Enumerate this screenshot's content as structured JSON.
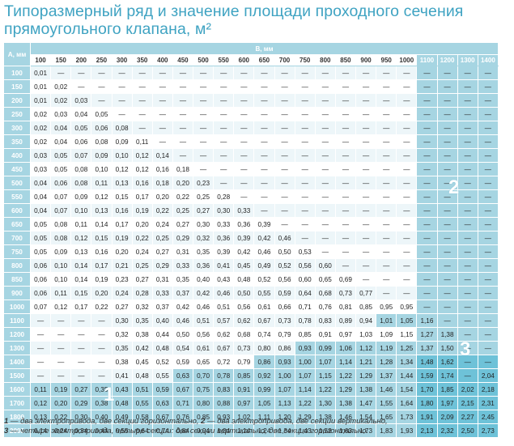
{
  "title": "Типоразмерный ряд и значение площади проходного сечения прямоугольного клапана, м²",
  "table": {
    "corner_label": "A, мм",
    "b_label": "B, мм",
    "columns": [
      "100",
      "150",
      "200",
      "250",
      "300",
      "350",
      "400",
      "450",
      "500",
      "550",
      "600",
      "650",
      "700",
      "750",
      "800",
      "850",
      "900",
      "950",
      "1000",
      "1100",
      "1200",
      "1300",
      "1400"
    ],
    "rows": [
      {
        "a": "100",
        "v": [
          "0,01",
          "—",
          "—",
          "—",
          "—",
          "—",
          "—",
          "—",
          "—",
          "—",
          "—",
          "—",
          "—",
          "—",
          "—",
          "—",
          "—",
          "—",
          "—",
          "—",
          "—",
          "—",
          "—"
        ]
      },
      {
        "a": "150",
        "v": [
          "0,01",
          "0,02",
          "—",
          "—",
          "—",
          "—",
          "—",
          "—",
          "—",
          "—",
          "—",
          "—",
          "—",
          "—",
          "—",
          "—",
          "—",
          "—",
          "—",
          "—",
          "—",
          "—",
          "—"
        ]
      },
      {
        "a": "200",
        "v": [
          "0,01",
          "0,02",
          "0,03",
          "—",
          "—",
          "—",
          "—",
          "—",
          "—",
          "—",
          "—",
          "—",
          "—",
          "—",
          "—",
          "—",
          "—",
          "—",
          "—",
          "—",
          "—",
          "—",
          "—"
        ]
      },
      {
        "a": "250",
        "v": [
          "0,02",
          "0,03",
          "0,04",
          "0,05",
          "—",
          "—",
          "—",
          "—",
          "—",
          "—",
          "—",
          "—",
          "—",
          "—",
          "—",
          "—",
          "—",
          "—",
          "—",
          "—",
          "—",
          "—",
          "—"
        ]
      },
      {
        "a": "300",
        "v": [
          "0,02",
          "0,04",
          "0,05",
          "0,06",
          "0,08",
          "—",
          "—",
          "—",
          "—",
          "—",
          "—",
          "—",
          "—",
          "—",
          "—",
          "—",
          "—",
          "—",
          "—",
          "—",
          "—",
          "—",
          "—"
        ]
      },
      {
        "a": "350",
        "v": [
          "0,02",
          "0,04",
          "0,06",
          "0,08",
          "0,09",
          "0,11",
          "—",
          "—",
          "—",
          "—",
          "—",
          "—",
          "—",
          "—",
          "—",
          "—",
          "—",
          "—",
          "—",
          "—",
          "—",
          "—",
          "—"
        ]
      },
      {
        "a": "400",
        "v": [
          "0,03",
          "0,05",
          "0,07",
          "0,09",
          "0,10",
          "0,12",
          "0,14",
          "—",
          "—",
          "—",
          "—",
          "—",
          "—",
          "—",
          "—",
          "—",
          "—",
          "—",
          "—",
          "—",
          "—",
          "—",
          "—"
        ]
      },
      {
        "a": "450",
        "v": [
          "0,03",
          "0,05",
          "0,08",
          "0,10",
          "0,12",
          "0,12",
          "0,16",
          "0,18",
          "—",
          "—",
          "—",
          "—",
          "—",
          "—",
          "—",
          "—",
          "—",
          "—",
          "—",
          "—",
          "—",
          "—",
          "—"
        ]
      },
      {
        "a": "500",
        "v": [
          "0,04",
          "0,06",
          "0,08",
          "0,11",
          "0,13",
          "0,16",
          "0,18",
          "0,20",
          "0,23",
          "—",
          "—",
          "—",
          "—",
          "—",
          "—",
          "—",
          "—",
          "—",
          "—",
          "—",
          "—",
          "—",
          "—"
        ]
      },
      {
        "a": "550",
        "v": [
          "0,04",
          "0,07",
          "0,09",
          "0,12",
          "0,15",
          "0,17",
          "0,20",
          "0,22",
          "0,25",
          "0,28",
          "—",
          "—",
          "—",
          "—",
          "—",
          "—",
          "—",
          "—",
          "—",
          "—",
          "—",
          "—",
          "—"
        ]
      },
      {
        "a": "600",
        "v": [
          "0,04",
          "0,07",
          "0,10",
          "0,13",
          "0,16",
          "0,19",
          "0,22",
          "0,25",
          "0,27",
          "0,30",
          "0,33",
          "—",
          "—",
          "—",
          "—",
          "—",
          "—",
          "—",
          "—",
          "—",
          "—",
          "—",
          "—"
        ]
      },
      {
        "a": "650",
        "v": [
          "0,05",
          "0,08",
          "0,11",
          "0,14",
          "0,17",
          "0,20",
          "0,24",
          "0,27",
          "0,30",
          "0,33",
          "0,36",
          "0,39",
          "—",
          "—",
          "—",
          "—",
          "—",
          "—",
          "—",
          "—",
          "—",
          "—",
          "—"
        ]
      },
      {
        "a": "700",
        "v": [
          "0,05",
          "0,08",
          "0,12",
          "0,15",
          "0,19",
          "0,22",
          "0,25",
          "0,29",
          "0,32",
          "0,36",
          "0,39",
          "0,42",
          "0,46",
          "—",
          "—",
          "—",
          "—",
          "—",
          "—",
          "—",
          "—",
          "—",
          "—"
        ]
      },
      {
        "a": "750",
        "v": [
          "0,05",
          "0,09",
          "0,13",
          "0,16",
          "0,20",
          "0,24",
          "0,27",
          "0,31",
          "0,35",
          "0,39",
          "0,42",
          "0,46",
          "0,50",
          "0,53",
          "—",
          "—",
          "—",
          "—",
          "—",
          "—",
          "—",
          "—",
          "—"
        ]
      },
      {
        "a": "800",
        "v": [
          "0,06",
          "0,10",
          "0,14",
          "0,17",
          "0,21",
          "0,25",
          "0,29",
          "0,33",
          "0,36",
          "0,41",
          "0,45",
          "0,49",
          "0,52",
          "0,56",
          "0,60",
          "—",
          "—",
          "—",
          "—",
          "—",
          "—",
          "—",
          "—"
        ]
      },
      {
        "a": "850",
        "v": [
          "0,06",
          "0,10",
          "0,14",
          "0,19",
          "0,23",
          "0,27",
          "0,31",
          "0,35",
          "0,40",
          "0,43",
          "0,48",
          "0,52",
          "0,56",
          "0,60",
          "0,65",
          "0,69",
          "—",
          "—",
          "—",
          "—",
          "—",
          "—",
          "—"
        ]
      },
      {
        "a": "900",
        "v": [
          "0,06",
          "0,11",
          "0,15",
          "0,20",
          "0,24",
          "0,28",
          "0,33",
          "0,37",
          "0,42",
          "0,46",
          "0,50",
          "0,55",
          "0,59",
          "0,64",
          "0,68",
          "0,73",
          "0,77",
          "—",
          "—",
          "—",
          "—",
          "—",
          "—"
        ]
      },
      {
        "a": "1000",
        "v": [
          "0,07",
          "0,12",
          "0,17",
          "0,22",
          "0,27",
          "0,32",
          "0,37",
          "0,42",
          "0,46",
          "0,51",
          "0,56",
          "0,61",
          "0,66",
          "0,71",
          "0,76",
          "0,81",
          "0,85",
          "0,95",
          "0,95",
          "—",
          "—",
          "—",
          "—"
        ]
      },
      {
        "a": "1100",
        "v": [
          "—",
          "—",
          "—",
          "—",
          "0,30",
          "0,35",
          "0,40",
          "0,46",
          "0,51",
          "0,57",
          "0,62",
          "0,67",
          "0,73",
          "0,78",
          "0,83",
          "0,89",
          "0,94",
          "1,01",
          "1,05",
          "1,16",
          "—",
          "—",
          "—"
        ]
      },
      {
        "a": "1200",
        "v": [
          "—",
          "—",
          "—",
          "—",
          "0,32",
          "0,38",
          "0,44",
          "0,50",
          "0,56",
          "0,62",
          "0,68",
          "0,74",
          "0,79",
          "0,85",
          "0,91",
          "0,97",
          "1,03",
          "1,09",
          "1,15",
          "1,27",
          "1,38",
          "—",
          "—"
        ]
      },
      {
        "a": "1300",
        "v": [
          "—",
          "—",
          "—",
          "—",
          "0,35",
          "0,42",
          "0,48",
          "0,54",
          "0,61",
          "0,67",
          "0,73",
          "0,80",
          "0,86",
          "0,93",
          "0,99",
          "1,06",
          "1,12",
          "1,19",
          "1,25",
          "1,37",
          "1,50",
          "—",
          "—"
        ]
      },
      {
        "a": "1400",
        "v": [
          "—",
          "—",
          "—",
          "—",
          "0,38",
          "0,45",
          "0,52",
          "0,59",
          "0,65",
          "0,72",
          "0,79",
          "0,86",
          "0,93",
          "1,00",
          "1,07",
          "1,14",
          "1,21",
          "1,28",
          "1,34",
          "1,48",
          "1,62",
          "—",
          "—"
        ]
      },
      {
        "a": "1500",
        "v": [
          "—",
          "—",
          "—",
          "—",
          "0,41",
          "0,48",
          "0,55",
          "0,63",
          "0,70",
          "0,78",
          "0,85",
          "0,92",
          "1,00",
          "1,07",
          "1,15",
          "1,22",
          "1,29",
          "1,37",
          "1,44",
          "1,59",
          "1,74",
          "—",
          "2,04"
        ]
      },
      {
        "a": "1600",
        "v": [
          "0,11",
          "0,19",
          "0,27",
          "0,35",
          "0,43",
          "0,51",
          "0,59",
          "0,67",
          "0,75",
          "0,83",
          "0,91",
          "0,99",
          "1,07",
          "1,14",
          "1,22",
          "1,29",
          "1,38",
          "1,46",
          "1,54",
          "1,70",
          "1,85",
          "2,02",
          "2,18"
        ]
      },
      {
        "a": "1700",
        "v": [
          "0,12",
          "0,20",
          "0,29",
          "0,38",
          "0,48",
          "0,55",
          "0,63",
          "0,71",
          "0,80",
          "0,88",
          "0,97",
          "1,05",
          "1,13",
          "1,22",
          "1,30",
          "1,38",
          "1,47",
          "1,55",
          "1,64",
          "1,80",
          "1,97",
          "2,15",
          "2,31"
        ]
      },
      {
        "a": "1800",
        "v": [
          "0,13",
          "0,22",
          "0,30",
          "0,40",
          "0,49",
          "0,58",
          "0,67",
          "0,76",
          "0,85",
          "0,93",
          "1,02",
          "1,11",
          "1,20",
          "1,29",
          "1,38",
          "1,46",
          "1,54",
          "1,65",
          "1,73",
          "1,91",
          "2,09",
          "2,27",
          "2,45"
        ]
      },
      {
        "a": "2000",
        "v": [
          "0,14",
          "0,24",
          "0,34",
          "0,44",
          "0,55",
          "0,64",
          "0,74",
          "0,84",
          "0,94",
          "1,04",
          "1,14",
          "1,24",
          "1,34",
          "1,43",
          "1,53",
          "1,63",
          "1,73",
          "1,83",
          "1,93",
          "2,13",
          "2,32",
          "2,50",
          "2,73"
        ]
      }
    ]
  },
  "zones": {
    "zone1": "1",
    "zone2": "2",
    "zone3": "3"
  },
  "footnote": {
    "n1": "1",
    "t1": " — два электропривода, две секции горизонтально, ",
    "n2": "2",
    "t2": " — два электропривода, две секции вертикально,",
    "n3": "3",
    "t3": " — четыре электропривода, четыре секции: две секции вертикально, две секции горизонтально."
  },
  "colors": {
    "title": "#3fa3c2",
    "header": "#a6d5e2",
    "zone3": "#6ec2d8"
  }
}
